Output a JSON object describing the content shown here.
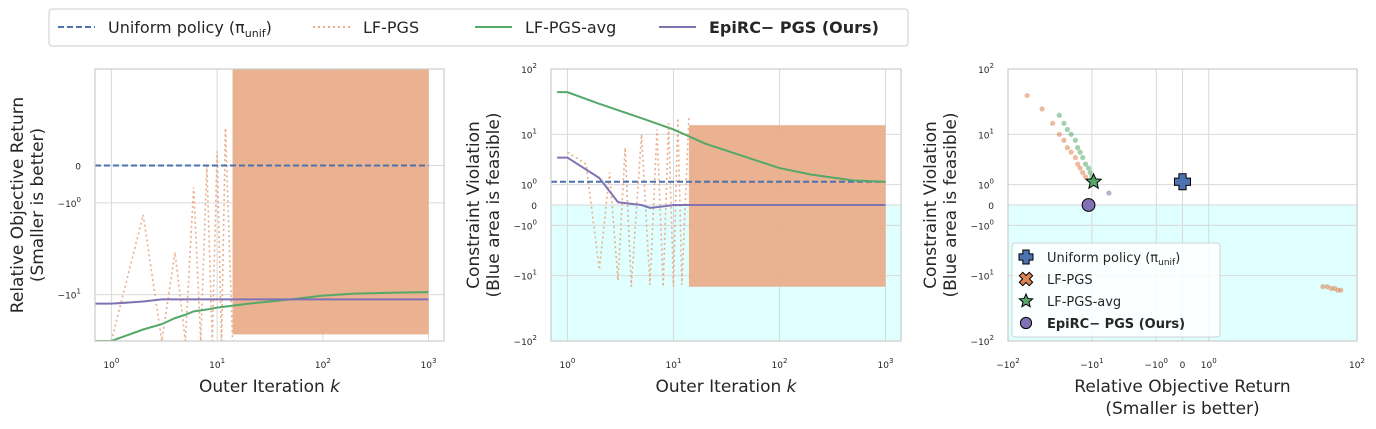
{
  "legend": {
    "entries": [
      {
        "label": "Uniform policy (π",
        "sub": "unif",
        "tail": ")",
        "color": "#4c72b0",
        "style": "dashed",
        "bold": false
      },
      {
        "label": "LF-PGS",
        "color": "#e9ae8b",
        "style": "dotted",
        "bold": false
      },
      {
        "label": "LF-PGS-avg",
        "color": "#55a868",
        "style": "solid",
        "bold": false
      },
      {
        "label": "EpiRC− PGS (Ours)",
        "color": "#8172b3",
        "style": "solid",
        "bold": true
      }
    ]
  },
  "colors": {
    "uniform": "#4c72b0",
    "lfpgs": "#e9ae8b",
    "lfpgs_fill": "#e9ae8b",
    "lfpgs_avg": "#55a868",
    "epirc": "#8172b3",
    "feasible": "#e0ffff",
    "grid": "#d9d9d9",
    "scatter_lfpgs": "#dd8452"
  },
  "chart_data": [
    {
      "type": "line",
      "xlabel_prefix": "Outer Iteration ",
      "xlabel_var": "k",
      "ylabel_line1": "Relative Objective Return",
      "ylabel_line2": "(Smaller is better)",
      "xscale": "log",
      "yscale": "symlog",
      "xlim": [
        0.7,
        1400
      ],
      "ylim": [
        -25,
        5
      ],
      "xticks": [
        {
          "v": 1,
          "l": "10",
          "e": "0"
        },
        {
          "v": 10,
          "l": "10",
          "e": "1"
        },
        {
          "v": 100,
          "l": "10",
          "e": "2"
        },
        {
          "v": 1000,
          "l": "10",
          "e": "3"
        }
      ],
      "yticks": [
        {
          "v": 0,
          "l": "0"
        },
        {
          "v": -1,
          "l": "−10",
          "e": "0"
        },
        {
          "v": -10,
          "l": "−10",
          "e": "1"
        }
      ],
      "series": [
        {
          "key": "uniform",
          "x": [
            0.7,
            1000
          ],
          "y": [
            0,
            0
          ]
        },
        {
          "key": "lfpgs_avg",
          "x": [
            0.7,
            1,
            2,
            3,
            4,
            5,
            6,
            8,
            10,
            20,
            50,
            100,
            200,
            500,
            1000
          ],
          "y": [
            -25,
            -25,
            -20,
            -18,
            -16,
            -15,
            -14,
            -13.5,
            -13,
            -12,
            -11,
            -10.2,
            -9.8,
            -9.6,
            -9.5
          ]
        },
        {
          "key": "epirc",
          "x": [
            0.7,
            1,
            2,
            3,
            5,
            10,
            100,
            1000
          ],
          "y": [
            -12,
            -12,
            -11.5,
            -11,
            -11,
            -11,
            -11,
            -11
          ]
        },
        {
          "key": "lfpgs",
          "x": [
            1,
            2,
            3,
            4,
            5,
            6,
            7,
            8,
            9,
            10,
            11,
            12,
            14
          ],
          "y": [
            -25,
            -1.5,
            -25,
            -4,
            -25,
            -0.5,
            -25,
            0,
            -25,
            0.3,
            -25,
            1,
            -25
          ]
        }
      ],
      "band": {
        "key": "lfpgs_fill",
        "x_from": 14,
        "x_to": 1000,
        "y_low": -22,
        "y_high": 5
      }
    },
    {
      "type": "line",
      "xlabel_prefix": "Outer Iteration ",
      "xlabel_var": "k",
      "ylabel_line1": "Constraint Violation",
      "ylabel_line2": "(Blue area is feasible)",
      "xscale": "log",
      "yscale": "symlog",
      "xlim": [
        0.7,
        1400
      ],
      "ylim": [
        -100,
        100
      ],
      "feasible_below": 0,
      "xticks": [
        {
          "v": 1,
          "l": "10",
          "e": "0"
        },
        {
          "v": 10,
          "l": "10",
          "e": "1"
        },
        {
          "v": 100,
          "l": "10",
          "e": "2"
        },
        {
          "v": 1000,
          "l": "10",
          "e": "3"
        }
      ],
      "yticks": [
        {
          "v": 100,
          "l": "10",
          "e": "2"
        },
        {
          "v": 10,
          "l": "10",
          "e": "1"
        },
        {
          "v": 1,
          "l": "10",
          "e": "0"
        },
        {
          "v": 0,
          "l": "0"
        },
        {
          "v": -1,
          "l": "−10",
          "e": "0"
        },
        {
          "v": -10,
          "l": "−10",
          "e": "1"
        },
        {
          "v": -100,
          "l": "−10",
          "e": "2"
        }
      ],
      "series": [
        {
          "key": "uniform",
          "x": [
            0.7,
            1000
          ],
          "y": [
            1.2,
            1.2
          ]
        },
        {
          "key": "lfpgs_avg",
          "x": [
            0.8,
            1,
            2,
            5,
            10,
            20,
            50,
            100,
            200,
            500,
            1000
          ],
          "y": [
            45,
            45,
            30,
            18,
            12,
            7,
            4,
            2.5,
            1.8,
            1.3,
            1.2
          ]
        },
        {
          "key": "epirc",
          "x": [
            0.8,
            1,
            2,
            3,
            5,
            6,
            8,
            10,
            100,
            1000
          ],
          "y": [
            4,
            4,
            1.5,
            0.1,
            0,
            -0.1,
            -0.05,
            0,
            0,
            0
          ]
        },
        {
          "key": "lfpgs",
          "x": [
            1,
            1.5,
            2,
            2.5,
            3,
            3.5,
            4,
            5,
            6,
            7,
            8,
            9,
            10,
            11,
            12,
            14
          ],
          "y": [
            5,
            3,
            -8,
            2,
            -12,
            6,
            -15,
            10,
            -14,
            12,
            -15,
            15,
            -15,
            18,
            -14,
            20
          ]
        }
      ],
      "band": {
        "key": "lfpgs_fill",
        "x_from": 14,
        "x_to": 1000,
        "y_low": -15,
        "y_high": 14
      }
    },
    {
      "type": "scatter",
      "xlabel_line1": "Relative Objective Return",
      "xlabel_line2": "(Smaller is better)",
      "ylabel_line1": "Constraint Violation",
      "ylabel_line2": "(Blue area is feasible)",
      "xscale": "symlog",
      "yscale": "symlog",
      "xlim": [
        -100,
        100
      ],
      "ylim": [
        -100,
        100
      ],
      "feasible_below": 0,
      "xticks": [
        {
          "v": -100,
          "l": "−10",
          "e": "2"
        },
        {
          "v": -10,
          "l": "−10",
          "e": "1"
        },
        {
          "v": -1,
          "l": "−10",
          "e": "0"
        },
        {
          "v": 0,
          "l": "0"
        },
        {
          "v": 1,
          "l": "10",
          "e": "0"
        },
        {
          "v": 100,
          "l": "10",
          "e": "2"
        }
      ],
      "yticks": [
        {
          "v": 100,
          "l": "10",
          "e": "2"
        },
        {
          "v": 10,
          "l": "10",
          "e": "1"
        },
        {
          "v": 1,
          "l": "10",
          "e": "0"
        },
        {
          "v": 0,
          "l": "0"
        },
        {
          "v": -1,
          "l": "−10",
          "e": "0"
        },
        {
          "v": -10,
          "l": "−10",
          "e": "1"
        },
        {
          "v": -100,
          "l": "−10",
          "e": "2"
        }
      ],
      "points": [
        {
          "key": "uniform",
          "marker": "plus",
          "x": 0,
          "y": 1.2
        },
        {
          "key": "lfpgs_avg",
          "marker": "star",
          "x": -9.5,
          "y": 1.2
        },
        {
          "key": "epirc",
          "marker": "circle",
          "x": -11,
          "y": 0
        }
      ],
      "clouds": [
        {
          "key": "scatter_lfpgs",
          "x": [
            -60,
            -40,
            -30,
            -25,
            -22,
            -20,
            -18,
            -16,
            -15,
            -14,
            -13,
            -12,
            40,
            45,
            50,
            55,
            60,
            65
          ],
          "y": [
            40,
            25,
            15,
            10,
            8,
            6,
            5,
            4,
            3,
            2.5,
            2,
            1.6,
            -15,
            -15,
            -16,
            -16,
            -17,
            -17
          ]
        },
        {
          "key": "lfpgs_avg",
          "x": [
            -25,
            -22,
            -20,
            -18,
            -16,
            -15,
            -14,
            -13,
            -12,
            -11,
            -10.5,
            -10,
            -9.8
          ],
          "y": [
            20,
            15,
            12,
            10,
            8,
            6,
            5,
            4,
            3,
            2.5,
            2,
            1.6,
            1.3
          ]
        },
        {
          "key": "epirc",
          "x": [
            -6
          ],
          "y": [
            0.5
          ]
        }
      ],
      "legend": [
        {
          "key": "uniform",
          "marker": "plus",
          "label": "Uniform policy (π",
          "sub": "unif",
          "tail": ")",
          "bold": false
        },
        {
          "key": "scatter_lfpgs",
          "marker": "x",
          "label": "LF-PGS",
          "bold": false
        },
        {
          "key": "lfpgs_avg",
          "marker": "star",
          "label": "LF-PGS-avg",
          "bold": false
        },
        {
          "key": "epirc",
          "marker": "circle",
          "label": "EpiRC− PGS (Ours)",
          "bold": true
        }
      ]
    }
  ]
}
